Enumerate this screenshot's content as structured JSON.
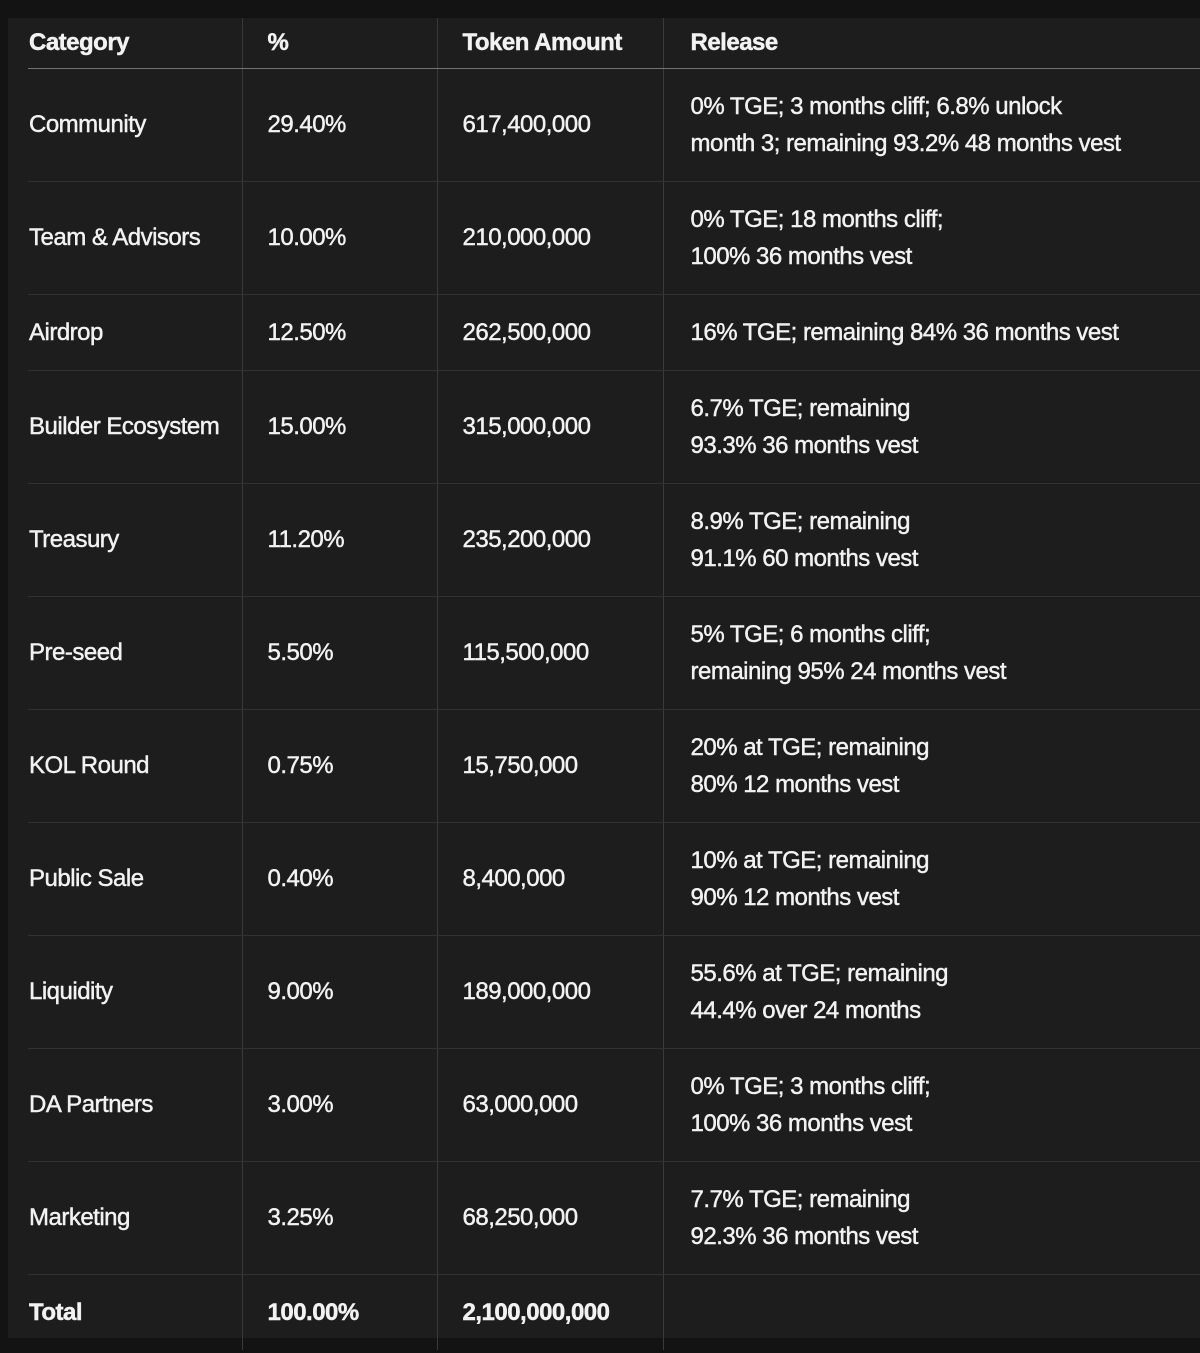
{
  "colors": {
    "page_background": "#131313",
    "table_background": "#1d1d1d",
    "text": "#f2f2f2",
    "row_divider": "#313131",
    "column_divider": "#3a3a3a",
    "header_divider": "#737373"
  },
  "table": {
    "headers": {
      "category": "Category",
      "percent": "%",
      "amount": "Token Amount",
      "release": "Release"
    },
    "rows": [
      {
        "category": "Community",
        "percent": "29.40%",
        "amount": "617,400,000",
        "release": "0% TGE; 3 months cliff; 6.8% unlock\nmonth 3; remaining 93.2% 48 months vest"
      },
      {
        "category": "Team & Advisors",
        "percent": "10.00%",
        "amount": "210,000,000",
        "release": "0% TGE; 18 months cliff;\n100% 36 months vest"
      },
      {
        "category": "Airdrop",
        "percent": "12.50%",
        "amount": "262,500,000",
        "release": "16% TGE; remaining 84% 36 months vest"
      },
      {
        "category": "Builder Ecosystem",
        "percent": "15.00%",
        "amount": "315,000,000",
        "release": "6.7% TGE; remaining\n93.3% 36 months vest"
      },
      {
        "category": "Treasury",
        "percent": "11.20%",
        "amount": "235,200,000",
        "release": "8.9% TGE; remaining\n91.1% 60 months vest"
      },
      {
        "category": "Pre-seed",
        "percent": "5.50%",
        "amount": "115,500,000",
        "release": "5% TGE; 6 months cliff;\nremaining 95% 24 months vest"
      },
      {
        "category": "KOL Round",
        "percent": "0.75%",
        "amount": "15,750,000",
        "release": "20% at TGE; remaining\n80% 12 months vest"
      },
      {
        "category": "Public Sale",
        "percent": "0.40%",
        "amount": "8,400,000",
        "release": "10% at TGE; remaining\n90% 12 months vest"
      },
      {
        "category": "Liquidity",
        "percent": "9.00%",
        "amount": "189,000,000",
        "release": "55.6% at TGE; remaining\n44.4% over 24 months"
      },
      {
        "category": "DA Partners",
        "percent": "3.00%",
        "amount": "63,000,000",
        "release": "0% TGE; 3 months cliff;\n100% 36 months vest"
      },
      {
        "category": "Marketing",
        "percent": "3.25%",
        "amount": "68,250,000",
        "release": "7.7% TGE; remaining\n92.3% 36 months vest"
      }
    ],
    "total": {
      "category": "Total",
      "percent": "100.00%",
      "amount": "2,100,000,000",
      "release": ""
    }
  }
}
